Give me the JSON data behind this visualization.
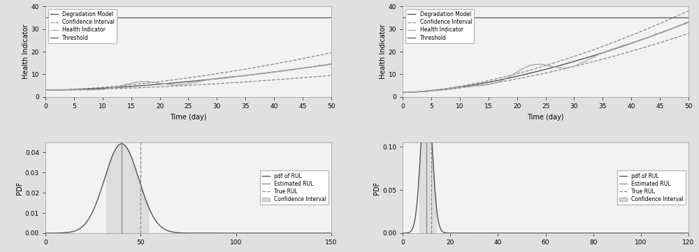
{
  "bg_color": "#e0e0e0",
  "ax_bg_color": "#f2f2f2",
  "top_left": {
    "xlim": [
      0,
      50
    ],
    "ylim": [
      0,
      40
    ],
    "xlabel": "Time (day)",
    "ylabel": "Health Indicator",
    "xticks": [
      0,
      5,
      10,
      15,
      20,
      25,
      30,
      35,
      40,
      45,
      50
    ],
    "yticks": [
      0,
      10,
      20,
      30,
      40
    ],
    "threshold": 35,
    "degrad_y_start": 3.0,
    "degrad_y_end": 14.5,
    "ci_upper_start": 3.0,
    "ci_upper_end": 19.5,
    "ci_lower_start": 3.0,
    "ci_lower_end": 9.5,
    "hi_start": 3.0,
    "legend": [
      "Degradation Model",
      "Confidence Interval",
      "Health Indicator",
      "Threshold"
    ]
  },
  "top_right": {
    "xlim": [
      0,
      50
    ],
    "ylim": [
      0,
      40
    ],
    "xlabel": "Time (day)",
    "ylabel": "Health Indicator",
    "xticks": [
      0,
      5,
      10,
      15,
      20,
      25,
      30,
      35,
      40,
      45,
      50
    ],
    "yticks": [
      0,
      10,
      20,
      30,
      40
    ],
    "threshold": 35,
    "degrad_y_start": 2.0,
    "degrad_y_end": 33.0,
    "ci_upper_start": 2.0,
    "ci_upper_end": 38.0,
    "ci_lower_start": 2.0,
    "ci_lower_end": 28.0,
    "hi_start": 2.0,
    "legend": [
      "Degradation Model",
      "Confidence Interval",
      "Health Indicator",
      "Threshold"
    ]
  },
  "bot_left": {
    "xlim": [
      0,
      150
    ],
    "ylim": [
      0,
      0.045
    ],
    "xlabel": "",
    "ylabel": "PDF",
    "xticks": [
      0,
      50,
      100,
      150
    ],
    "yticks": [
      0,
      0.01,
      0.02,
      0.03,
      0.04
    ],
    "mean": 40,
    "std": 9,
    "estimated_rul": 40,
    "true_rul": 50,
    "ci_low": 32,
    "ci_high": 54,
    "legend": [
      "pdf of RUL",
      "Estimated RUL",
      "True RUL",
      "Confidence Interval"
    ]
  },
  "bot_right": {
    "xlim": [
      0,
      120
    ],
    "ylim": [
      0,
      0.105
    ],
    "xlabel": "",
    "ylabel": "PDF",
    "xticks": [
      0,
      20,
      40,
      60,
      80,
      100,
      120
    ],
    "yticks": [
      0,
      0.05,
      0.1
    ],
    "mean": 10,
    "std": 2.2,
    "estimated_rul": 10,
    "true_rul": 12,
    "ci_low": 7,
    "ci_high": 14,
    "legend": [
      "pdf of RUL",
      "Estimated RUL",
      "True RUL",
      "Confidence Interval"
    ]
  },
  "line_color_dark": "#555555",
  "line_color_medium": "#888888",
  "line_color_light": "#aaaaaa",
  "threshold_color": "#555555",
  "ci_fill_color": "#d8d8d8",
  "fontsize": 7.0
}
